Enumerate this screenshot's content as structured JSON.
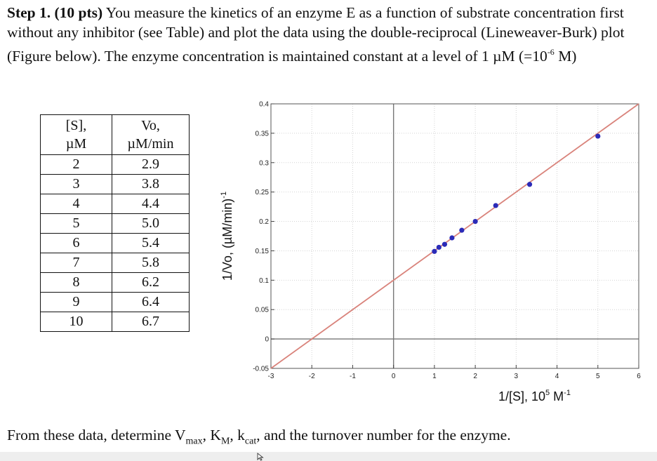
{
  "intro": {
    "step": "Step 1. (10 pts)",
    "text": " You measure the kinetics of an enzyme E as a function of substrate concentration first without any inhibitor (see Table) and plot the data using the double-reciprocal (Lineweaver-Burk) plot (Figure below). The enzyme concentration is maintained constant at a level of 1 µM (=10",
    "exponent": "-6",
    "tail": " M)"
  },
  "table": {
    "headers": [
      "[S],\nµM",
      "Vo,\nµM/min"
    ],
    "rows": [
      [
        "2",
        "2.9"
      ],
      [
        "3",
        "3.8"
      ],
      [
        "4",
        "4.4"
      ],
      [
        "5",
        "5.0"
      ],
      [
        "6",
        "5.4"
      ],
      [
        "7",
        "5.8"
      ],
      [
        "8",
        "6.2"
      ],
      [
        "9",
        "6.4"
      ],
      [
        "10",
        "6.7"
      ]
    ]
  },
  "chart_data": {
    "type": "scatter",
    "xlabel": "1/[S],  10",
    "xlabel_sup": "5",
    "xlabel_unit": " M",
    "xlabel_unit_sup": "-1",
    "ylabel": "1/Vo, (µM/min)",
    "ylabel_sup": "-1",
    "xlim": [
      -3,
      6
    ],
    "ylim": [
      -0.05,
      0.4
    ],
    "xticks": [
      "-3",
      "-2",
      "-1",
      "0",
      "1",
      "2",
      "3",
      "4",
      "5",
      "6"
    ],
    "yticks": [
      "-0.05",
      "0",
      "0.05",
      "0.1",
      "0.15",
      "0.2",
      "0.25",
      "0.3",
      "0.35",
      "0.4"
    ],
    "grid": true,
    "points": [
      {
        "x": 1.0,
        "y": 0.149
      },
      {
        "x": 1.11,
        "y": 0.156
      },
      {
        "x": 1.25,
        "y": 0.161
      },
      {
        "x": 1.43,
        "y": 0.172
      },
      {
        "x": 1.67,
        "y": 0.185
      },
      {
        "x": 2.0,
        "y": 0.2
      },
      {
        "x": 2.5,
        "y": 0.227
      },
      {
        "x": 3.33,
        "y": 0.263
      },
      {
        "x": 5.0,
        "y": 0.345
      }
    ],
    "fit_line": {
      "slope": 0.05,
      "intercept": 0.1
    },
    "colors": {
      "points": "#2b2bb8",
      "line": "#d9837b",
      "axes_zero": "#777777",
      "grid": "#d4d4d4"
    }
  },
  "question": {
    "text1": "From these data, determine V",
    "sub1": "max",
    "text2": ", K",
    "sub2": "M",
    "text3": ", k",
    "sub3": "cat",
    "text4": ", and the turnover number for the enzyme."
  }
}
